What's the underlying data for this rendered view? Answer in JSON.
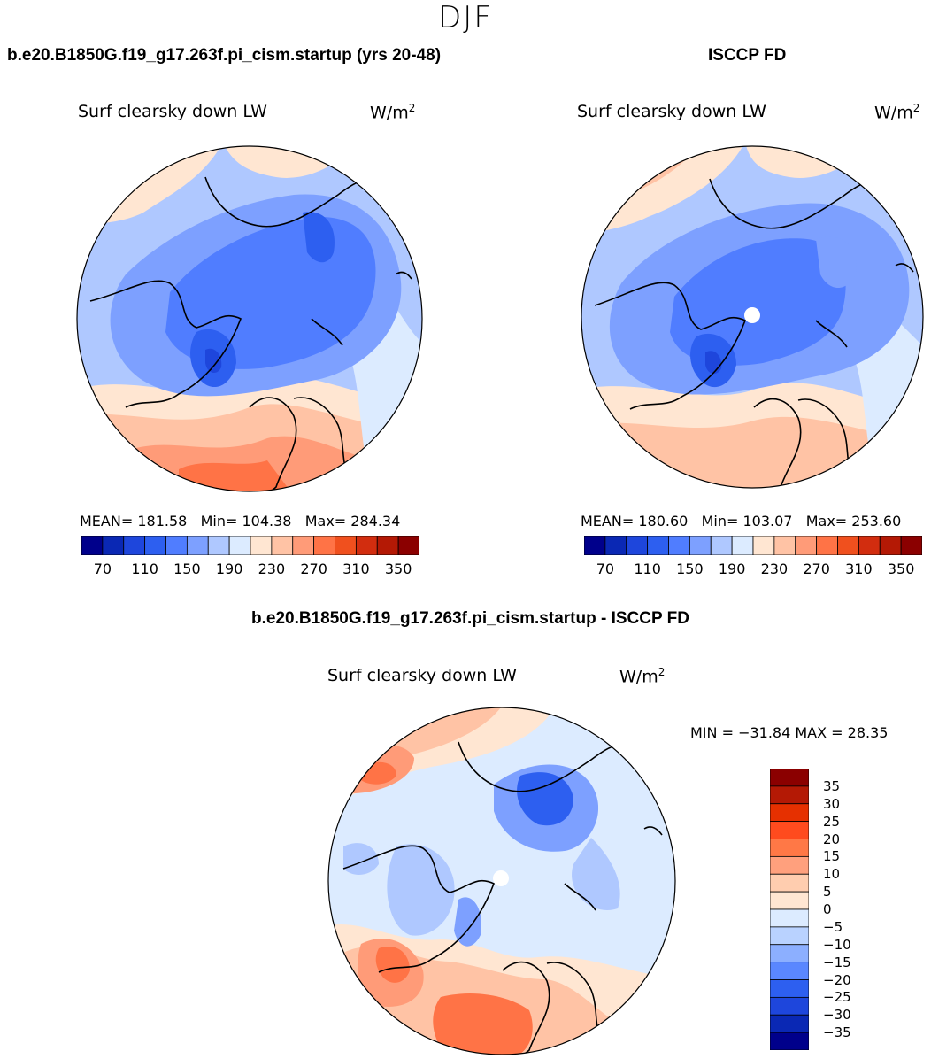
{
  "season": "DJF",
  "panels": {
    "model": {
      "title": "b.e20.B1850G.f19_g17.263f.pi_cism.startup (yrs 20-48)",
      "variable": "Surf clearsky down LW",
      "units_base": "W/m",
      "units_exp": "2",
      "stats": {
        "mean_label": "MEAN=",
        "mean": "181.58",
        "min_label": "Min=",
        "min": "104.38",
        "max_label": "Max=",
        "max": "284.34"
      }
    },
    "obs": {
      "title": "ISCCP FD",
      "variable": "Surf clearsky down LW",
      "units_base": "W/m",
      "units_exp": "2",
      "stats": {
        "mean_label": "MEAN=",
        "mean": "180.60",
        "min_label": "Min=",
        "min": "103.07",
        "max_label": "Max=",
        "max": "253.60"
      }
    },
    "diff": {
      "title": "b.e20.B1850G.f19_g17.263f.pi_cism.startup - ISCCP FD",
      "variable": "Surf clearsky down LW",
      "units_base": "W/m",
      "units_exp": "2",
      "minmax": "MIN = −31.84 MAX =  28.35"
    }
  },
  "colorbar_abs": {
    "ticks": [
      "70",
      "110",
      "150",
      "190",
      "230",
      "270",
      "310",
      "350"
    ],
    "colors": [
      "#00008b",
      "#0a28b4",
      "#1e46dc",
      "#2d5ff0",
      "#507dff",
      "#7da0ff",
      "#afc8ff",
      "#dcebff",
      "#ffe6d2",
      "#ffc3a5",
      "#ff9b78",
      "#ff7346",
      "#f0501e",
      "#d22d0f",
      "#b41905",
      "#8b0000"
    ]
  },
  "colorbar_diff": {
    "ticks": [
      "35",
      "30",
      "25",
      "20",
      "15",
      "10",
      "5",
      "0",
      "−5",
      "−10",
      "−15",
      "−20",
      "−25",
      "−30",
      "−35"
    ],
    "colors": [
      "#8b0000",
      "#b41905",
      "#e63000",
      "#ff4b1e",
      "#ff7846",
      "#ffa07d",
      "#ffcdaf",
      "#ffe6d2",
      "#dcebff",
      "#b9d2ff",
      "#8cafff",
      "#5a87ff",
      "#2d5ff0",
      "#1e46dc",
      "#0a28b4",
      "#00008b"
    ]
  }
}
